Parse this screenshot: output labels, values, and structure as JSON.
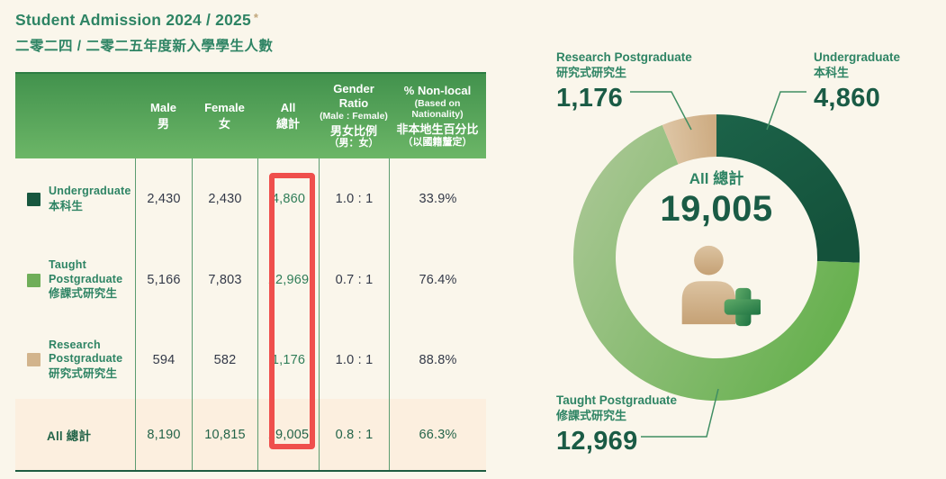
{
  "colors": {
    "bg": "#FAF6EB",
    "green-title": "#2E8464",
    "green-dark": "#17573F",
    "green-mid": "#6FAE59",
    "green-line": "#3F8E63",
    "tan": "#D2B48C",
    "tan-asterisk": "#C2A77C",
    "header-grad-top": "#42924D",
    "header-grad-bottom": "#6CB667",
    "header-text": "#FFFFFF",
    "cell-text": "#333948",
    "green-value": "#2F7D58",
    "total-bg": "#FCEFDF",
    "total-text": "#236449",
    "divider": "#5C9C70",
    "table-bottom": "#1D5C40",
    "highlight-red": "#EF4F4C",
    "number-dark": "#1A5B45",
    "person-tan-light": "#DCC3A1",
    "person-tan-dark": "#C5A175",
    "plus-light": "#5FAA68",
    "plus-dark": "#1E7342"
  },
  "header": {
    "title": "Student Admission 2024 / 2025",
    "asterisk": "*",
    "subtitle_zh": "二零二四 / 二零二五年度新入學學生人數"
  },
  "table": {
    "columns": [
      {
        "en": "Male",
        "sub": "",
        "zh": "男",
        "zh_sub": ""
      },
      {
        "en": "Female",
        "sub": "",
        "zh": "女",
        "zh_sub": ""
      },
      {
        "en": "All",
        "sub": "",
        "zh": "總計",
        "zh_sub": ""
      },
      {
        "en": "Gender Ratio",
        "sub": "(Male : Female)",
        "zh": "男女比例",
        "zh_sub": "（男：女）"
      },
      {
        "en": "% Non-local",
        "sub": "(Based on Nationality)",
        "zh": "非本地生百分比",
        "zh_sub": "（以國籍釐定）"
      }
    ],
    "rows": [
      {
        "label_en": "Undergraduate",
        "label_zh": "本科生",
        "swatch": "#17573F",
        "male": "2,430",
        "female": "2,430",
        "all": "4,860",
        "ratio": "1.0 : 1",
        "nonlocal": "33.9%"
      },
      {
        "label_en": "Taught Postgraduate",
        "label_zh": "修課式研究生",
        "swatch": "#6FAE59",
        "male": "5,166",
        "female": "7,803",
        "all": "12,969",
        "ratio": "0.7 : 1",
        "nonlocal": "76.4%"
      },
      {
        "label_en": "Research Postgraduate",
        "label_zh": "研究式研究生",
        "swatch": "#D2B48C",
        "male": "594",
        "female": "582",
        "all": "1,176",
        "ratio": "1.0 : 1",
        "nonlocal": "88.8%"
      }
    ],
    "total_row": {
      "label": "All 總計",
      "male": "8,190",
      "female": "10,815",
      "all": "19,005",
      "ratio": "0.8 : 1",
      "nonlocal": "66.3%"
    }
  },
  "chart_data": {
    "type": "pie",
    "subtype": "donut",
    "title": "Student Admission 2024 / 2025",
    "center_label": "All 總計",
    "center_value": "19,005",
    "total": 19005,
    "start_angle_deg": 0,
    "clockwise": true,
    "legend_position": "callout-labels",
    "segments": [
      {
        "name": "Undergraduate",
        "name_zh": "本科生",
        "value": 4860,
        "display": "4,860",
        "color_start": "#1C6349",
        "color_end": "#14523B"
      },
      {
        "name": "Taught Postgraduate",
        "name_zh": "修課式研究生",
        "value": 12969,
        "display": "12,969",
        "color_start": "#68B150",
        "color_end": "#ADC898"
      },
      {
        "name": "Research Postgraduate",
        "name_zh": "研究式研究生",
        "value": 1176,
        "display": "1,176",
        "color_start": "#DFC7A7",
        "color_end": "#CDAB81"
      }
    ]
  }
}
